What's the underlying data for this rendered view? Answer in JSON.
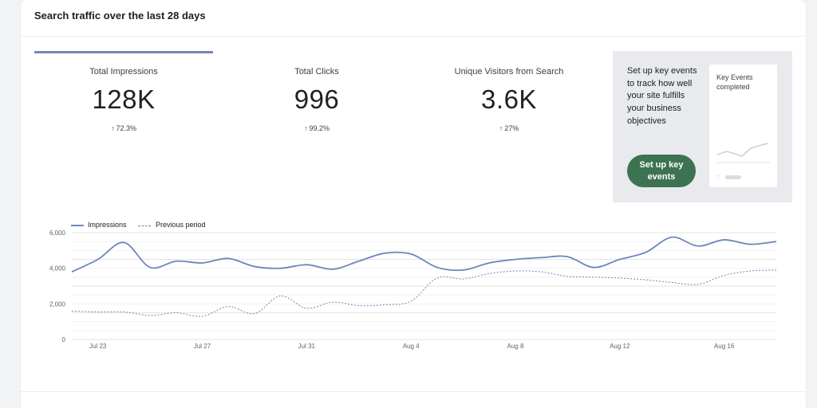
{
  "card_title": "Search traffic over the last 28 days",
  "metrics": [
    {
      "label": "Total Impressions",
      "value": "128K",
      "delta": "72.3%",
      "active": true
    },
    {
      "label": "Total Clicks",
      "value": "996",
      "delta": "99.2%",
      "active": false
    },
    {
      "label": "Unique Visitors from Search",
      "value": "3.6K",
      "delta": "27%",
      "active": false
    }
  ],
  "promo": {
    "text": "Set up key events to track how well your site fulfills your business objectives",
    "button_label": "Set up key events",
    "mini_card_title": "Key Events completed"
  },
  "colors": {
    "accent": "#7089b2",
    "series": "#6b87b8",
    "up_arrow": "#137333",
    "button": "#3d7352"
  },
  "chart_data": {
    "type": "line",
    "ylim": [
      0,
      6000
    ],
    "y_ticks": [
      0,
      2000,
      4000,
      6000
    ],
    "y_tick_labels": [
      "0",
      "2,000",
      "4,000",
      "6,000"
    ],
    "x": [
      "Jul 22",
      "Jul 23",
      "Jul 24",
      "Jul 25",
      "Jul 26",
      "Jul 27",
      "Jul 28",
      "Jul 29",
      "Jul 30",
      "Jul 31",
      "Aug 1",
      "Aug 2",
      "Aug 3",
      "Aug 4",
      "Aug 5",
      "Aug 6",
      "Aug 7",
      "Aug 8",
      "Aug 9",
      "Aug 10",
      "Aug 11",
      "Aug 12",
      "Aug 13",
      "Aug 14",
      "Aug 15",
      "Aug 16",
      "Aug 17",
      "Aug 18"
    ],
    "x_tick_labels": [
      "Jul 23",
      "Jul 27",
      "Jul 31",
      "Aug 4",
      "Aug 8",
      "Aug 12",
      "Aug 16"
    ],
    "x_tick_index": [
      1,
      5,
      9,
      13,
      17,
      21,
      25
    ],
    "legend_position": "top-left",
    "grid": true,
    "series": [
      {
        "name": "Impressions",
        "style": "solid",
        "values": [
          3800,
          4500,
          5450,
          4050,
          4400,
          4300,
          4550,
          4100,
          4000,
          4200,
          3950,
          4400,
          4850,
          4800,
          4050,
          3900,
          4300,
          4500,
          4600,
          4650,
          4050,
          4500,
          4900,
          5750,
          5250,
          5600,
          5350,
          5500
        ]
      },
      {
        "name": "Previous period",
        "style": "dashed",
        "values": [
          1600,
          1550,
          1550,
          1350,
          1500,
          1300,
          1850,
          1450,
          2450,
          1750,
          2100,
          1900,
          1950,
          2150,
          3450,
          3400,
          3700,
          3850,
          3800,
          3550,
          3500,
          3450,
          3350,
          3200,
          3100,
          3600,
          3850,
          3900
        ]
      }
    ]
  }
}
